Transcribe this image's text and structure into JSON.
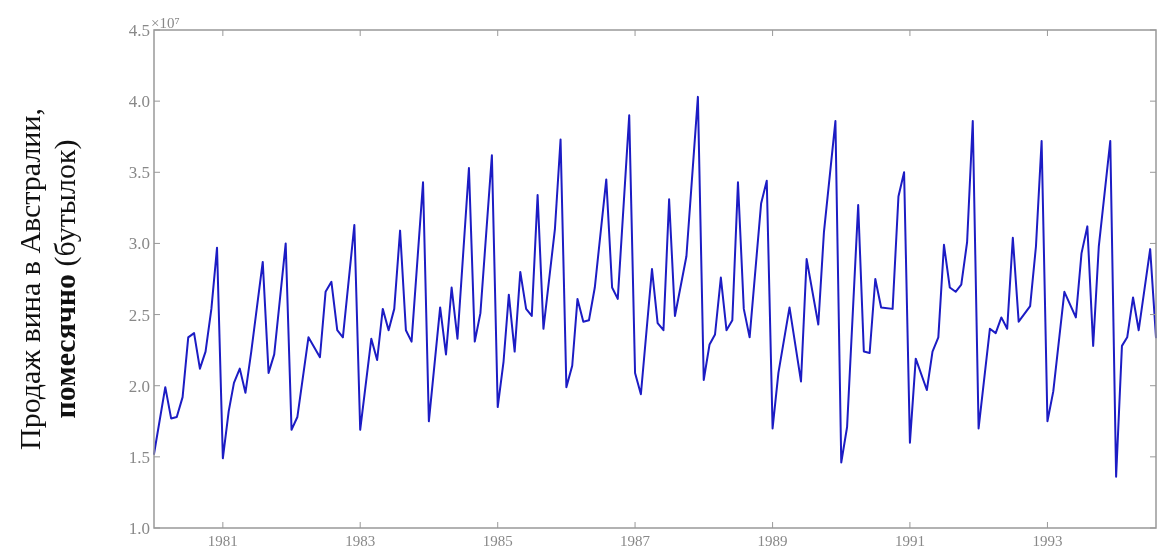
{
  "chart_data": {
    "type": "line",
    "ylabel": "Продаж вина в Австралии, помесячно (бутылок)",
    "annotations": [
      "×10⁷"
    ],
    "xlim": [
      "1980-01",
      "1994-08"
    ],
    "xticks": [
      "1981",
      "1983",
      "1985",
      "1987",
      "1989",
      "1991",
      "1993"
    ],
    "ylim": [
      1,
      4.5
    ],
    "yticks": [
      {
        "value": 1,
        "label": "1.0"
      },
      1.5,
      {
        "value": 2,
        "label": "2.0"
      },
      2.5,
      {
        "value": 3,
        "label": "3.0"
      },
      3.5,
      {
        "value": 4,
        "label": "4.0"
      },
      4.5
    ],
    "grid": false,
    "marker": "none",
    "line_style": "solid",
    "series": [
      {
        "color": "#1c1cc4",
        "x": [
          "1980-01",
          "1980-03",
          "1980-04",
          "1980-05",
          "1980-06",
          "1980-07",
          "1980-08",
          "1980-09",
          "1980-10",
          "1980-11",
          "1980-12",
          "1981-01",
          "1981-02",
          "1981-03",
          "1981-04",
          "1981-05",
          "1981-06",
          "1981-08",
          "1981-09",
          "1981-10",
          "1981-12",
          "1982-01",
          "1982-02",
          "1982-04",
          "1982-06",
          "1982-07",
          "1982-08",
          "1982-09",
          "1982-10",
          "1982-12",
          "1983-01",
          "1983-03",
          "1983-04",
          "1983-05",
          "1983-06",
          "1983-07",
          "1983-08",
          "1983-09",
          "1983-10",
          "1983-12",
          "1984-01",
          "1984-03",
          "1984-04",
          "1984-05",
          "1984-06",
          "1984-08",
          "1984-09",
          "1984-10",
          "1984-12",
          "1985-01",
          "1985-02",
          "1985-03",
          "1985-04",
          "1985-05",
          "1985-06",
          "1985-07",
          "1985-08",
          "1985-09",
          "1985-11",
          "1985-12",
          "1986-01",
          "1986-02",
          "1986-03",
          "1986-04",
          "1986-05",
          "1986-06",
          "1986-08",
          "1986-09",
          "1986-10",
          "1986-12",
          "1987-01",
          "1987-02",
          "1987-04",
          "1987-05",
          "1987-06",
          "1987-07",
          "1987-08",
          "1987-10",
          "1987-12",
          "1988-01",
          "1988-02",
          "1988-03",
          "1988-04",
          "1988-05",
          "1988-06",
          "1988-07",
          "1988-08",
          "1988-09",
          "1988-11",
          "1988-12",
          "1989-01",
          "1989-02",
          "1989-04",
          "1989-06",
          "1989-07",
          "1989-09",
          "1989-10",
          "1989-12",
          "1990-01",
          "1990-02",
          "1990-04",
          "1990-05",
          "1990-06",
          "1990-07",
          "1990-08",
          "1990-10",
          "1990-11",
          "1990-12",
          "1991-01",
          "1991-02",
          "1991-04",
          "1991-05",
          "1991-06",
          "1991-07",
          "1991-08",
          "1991-09",
          "1991-10",
          "1991-11",
          "1991-12",
          "1992-01",
          "1992-03",
          "1992-04",
          "1992-05",
          "1992-06",
          "1992-07",
          "1992-08",
          "1992-10",
          "1992-11",
          "1992-12",
          "1993-01",
          "1993-02",
          "1993-04",
          "1993-06",
          "1993-07",
          "1993-08",
          "1993-09",
          "1993-10",
          "1993-12",
          "1994-01",
          "1994-02",
          "1994-03",
          "1994-04",
          "1994-05",
          "1994-07",
          "1994-08"
        ],
        "values": [
          1.52,
          1.99,
          1.77,
          1.78,
          1.92,
          2.34,
          2.37,
          2.12,
          2.24,
          2.54,
          2.97,
          1.49,
          1.82,
          2.02,
          2.12,
          1.95,
          2.24,
          2.87,
          2.09,
          2.22,
          3.0,
          1.69,
          1.78,
          2.34,
          2.2,
          2.66,
          2.73,
          2.39,
          2.34,
          3.13,
          1.69,
          2.33,
          2.18,
          2.54,
          2.39,
          2.54,
          3.09,
          2.39,
          2.31,
          3.43,
          1.75,
          2.55,
          2.22,
          2.69,
          2.33,
          3.53,
          2.31,
          2.51,
          3.62,
          1.85,
          2.17,
          2.64,
          2.24,
          2.8,
          2.54,
          2.49,
          3.34,
          2.4,
          3.1,
          3.73,
          1.99,
          2.14,
          2.61,
          2.45,
          2.46,
          2.69,
          3.45,
          2.69,
          2.61,
          3.9,
          2.09,
          1.94,
          2.82,
          2.44,
          2.39,
          3.31,
          2.49,
          2.91,
          4.03,
          2.04,
          2.29,
          2.36,
          2.76,
          2.39,
          2.46,
          3.43,
          2.54,
          2.34,
          3.28,
          3.44,
          1.7,
          2.09,
          2.55,
          2.03,
          2.89,
          2.43,
          3.08,
          3.86,
          1.46,
          1.71,
          3.27,
          2.24,
          2.23,
          2.75,
          2.55,
          2.54,
          3.33,
          3.5,
          1.6,
          2.19,
          1.97,
          2.24,
          2.34,
          2.99,
          2.69,
          2.66,
          2.71,
          3.01,
          3.86,
          1.7,
          2.4,
          2.37,
          2.48,
          2.4,
          3.04,
          2.45,
          2.56,
          2.98,
          3.72,
          1.75,
          1.96,
          2.66,
          2.48,
          2.93,
          3.12,
          2.28,
          2.98,
          3.72,
          1.36,
          2.28,
          2.34,
          2.62,
          2.39,
          2.96,
          2.34
        ]
      }
    ]
  }
}
